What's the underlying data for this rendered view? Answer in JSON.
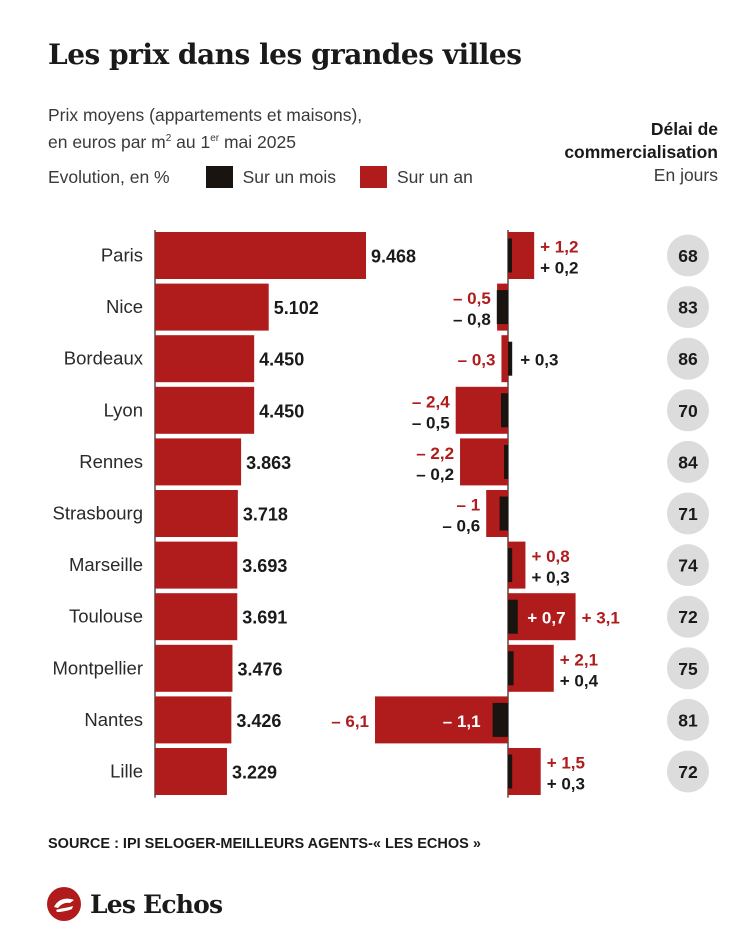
{
  "title": "Les prix dans les grandes villes",
  "subtitle_line1": "Prix moyens (appartements et maisons),",
  "subtitle_line2_prefix": "en euros par m",
  "subtitle_line2_sup": "2",
  "subtitle_line2_mid": "au 1",
  "subtitle_line2_sup2": "er",
  "subtitle_line2_suffix": "mai 2025",
  "legend": {
    "label": "Evolution, en %",
    "month": "Sur un mois",
    "year": "Sur un an"
  },
  "delay_header": {
    "line1": "Délai de",
    "line2": "commercialisation",
    "line3": "En jours"
  },
  "colors": {
    "year": "#b01c1c",
    "month": "#1a1410",
    "badge": "#dcdcdc",
    "year_text": "#b01c1c",
    "month_text": "#1a1a1a"
  },
  "source": "SOURCE : IPI SELOGER-MEILLEURS AGENTS-« LES ECHOS »",
  "brand": "Les Echos",
  "chart_data": {
    "type": "bar",
    "categories": [
      "Paris",
      "Nice",
      "Bordeaux",
      "Lyon",
      "Rennes",
      "Strasbourg",
      "Marseille",
      "Toulouse",
      "Montpellier",
      "Nantes",
      "Lille"
    ],
    "series": [
      {
        "values": [
          9468,
          5102,
          4450,
          4450,
          3863,
          3718,
          3693,
          3691,
          3476,
          3426,
          3229
        ],
        "labels": [
          "9.468",
          "5.102",
          "4.450",
          "4.450",
          "3.863",
          "3.718",
          "3.693",
          "3.691",
          "3.476",
          "3.426",
          "3.229"
        ]
      },
      {
        "name": "Sur un mois",
        "values": [
          0.2,
          -0.8,
          0.3,
          -0.5,
          -0.2,
          -0.6,
          0.3,
          0.7,
          0.4,
          -1.1,
          0.3
        ],
        "labels": [
          "+ 0,2",
          "– 0,8",
          "+ 0,3",
          "– 0,5",
          "– 0,2",
          "– 0,6",
          "+ 0,3",
          "+ 0,7",
          "+ 0,4",
          "– 1,1",
          "+ 0,3"
        ]
      },
      {
        "name": "Sur un an",
        "values": [
          1.2,
          -0.5,
          -0.3,
          -2.4,
          -2.2,
          -1,
          0.8,
          3.1,
          2.1,
          -6.1,
          1.5
        ],
        "labels": [
          "+ 1,2",
          "– 0,5",
          "– 0,3",
          "– 2,4",
          "– 2,2",
          "– 1",
          "+ 0,8",
          "+ 3,1",
          "+ 2,1",
          "– 6,1",
          "+ 1,5"
        ]
      },
      {
        "values": [
          68,
          83,
          86,
          70,
          84,
          71,
          74,
          72,
          75,
          81,
          72
        ]
      }
    ]
  }
}
